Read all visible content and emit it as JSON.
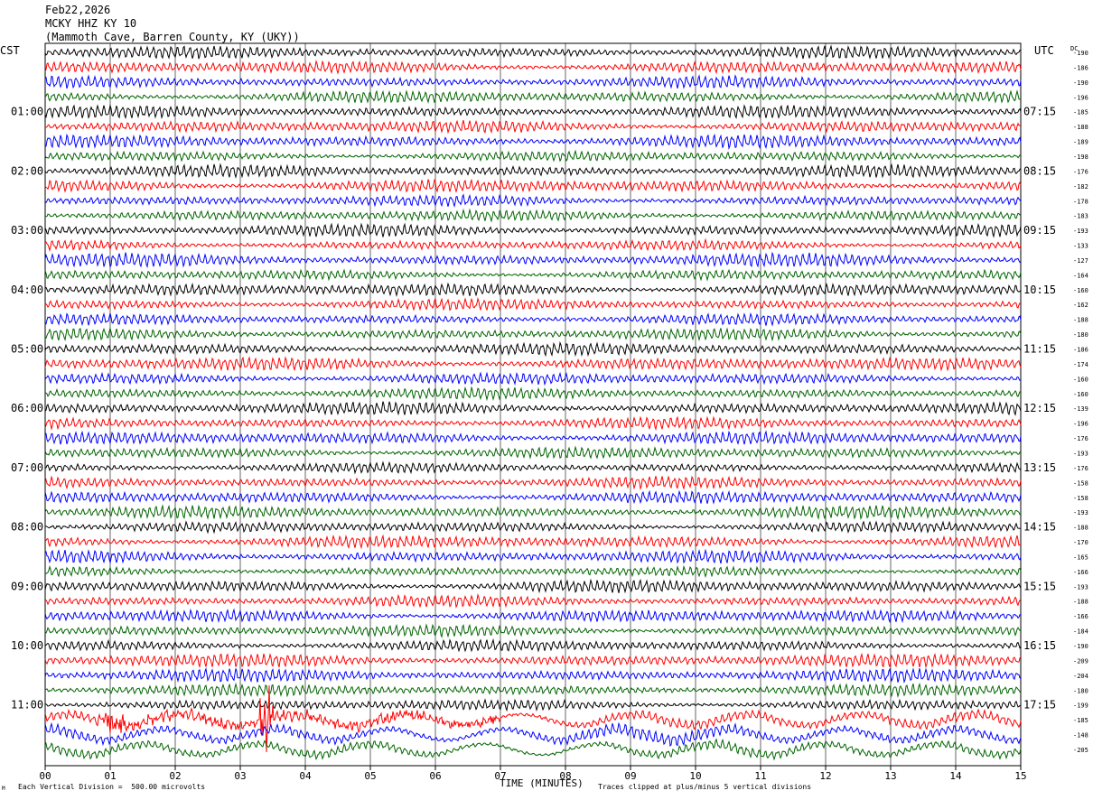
{
  "header": {
    "date": "Feb22,2026",
    "station": "MCKY HHZ KY 10",
    "location": "(Mammoth Cave, Barren County, KY (UKY))"
  },
  "left_zone": "CST",
  "right_zone": "UTC",
  "dc_label": "DC",
  "footer": {
    "scale_note": "Each Vertical Division =  500.00 microvolts",
    "clip_note": "Traces clipped at plus/minus 5 vertical divisions",
    "corner_mark": "M"
  },
  "colors": {
    "trace_cycle": [
      "#000000",
      "#ff0000",
      "#0000ff",
      "#006400"
    ],
    "grid": "#000000",
    "background": "#ffffff"
  },
  "chart_data": {
    "type": "line",
    "title": "MCKY HHZ KY 10",
    "xlabel": "TIME (MINUTES)",
    "ylabel": "",
    "xlim": [
      0,
      15
    ],
    "x_ticks": [
      "00",
      "01",
      "02",
      "03",
      "04",
      "05",
      "06",
      "07",
      "08",
      "09",
      "10",
      "11",
      "12",
      "13",
      "14",
      "15"
    ],
    "left_time_labels": [
      {
        "row": 4,
        "label": "01:00"
      },
      {
        "row": 8,
        "label": "02:00"
      },
      {
        "row": 12,
        "label": "03:00"
      },
      {
        "row": 16,
        "label": "04:00"
      },
      {
        "row": 20,
        "label": "05:00"
      },
      {
        "row": 24,
        "label": "06:00"
      },
      {
        "row": 28,
        "label": "07:00"
      },
      {
        "row": 32,
        "label": "08:00"
      },
      {
        "row": 36,
        "label": "09:00"
      },
      {
        "row": 40,
        "label": "10:00"
      },
      {
        "row": 44,
        "label": "11:00"
      }
    ],
    "right_time_labels": [
      {
        "row": 4,
        "label": "07:15"
      },
      {
        "row": 8,
        "label": "08:15"
      },
      {
        "row": 12,
        "label": "09:15"
      },
      {
        "row": 16,
        "label": "10:15"
      },
      {
        "row": 20,
        "label": "11:15"
      },
      {
        "row": 24,
        "label": "12:15"
      },
      {
        "row": 28,
        "label": "13:15"
      },
      {
        "row": 32,
        "label": "14:15"
      },
      {
        "row": 36,
        "label": "15:15"
      },
      {
        "row": 40,
        "label": "16:15"
      },
      {
        "row": 44,
        "label": "17:15"
      }
    ],
    "dc_offsets": [
      -190,
      -186,
      -190,
      -196,
      -185,
      -188,
      -189,
      -198,
      -176,
      -182,
      -178,
      -183,
      -193,
      -133,
      -127,
      -164,
      -160,
      -162,
      -188,
      -180,
      -186,
      -174,
      -160,
      -160,
      -139,
      -196,
      -176,
      -193,
      -176,
      -158,
      -158,
      -193,
      -188,
      -170,
      -165,
      -166,
      -193,
      -188,
      -166,
      -184,
      -190,
      -209,
      -204,
      -180,
      -199,
      -185,
      -148,
      -205
    ],
    "events": [
      {
        "row": 45,
        "minute_start": 0.8,
        "minute_end": 1.2,
        "note": "burst"
      },
      {
        "row": 45,
        "minute_start": 3.3,
        "minute_end": 3.5,
        "note": "large clipped arrival"
      }
    ]
  }
}
